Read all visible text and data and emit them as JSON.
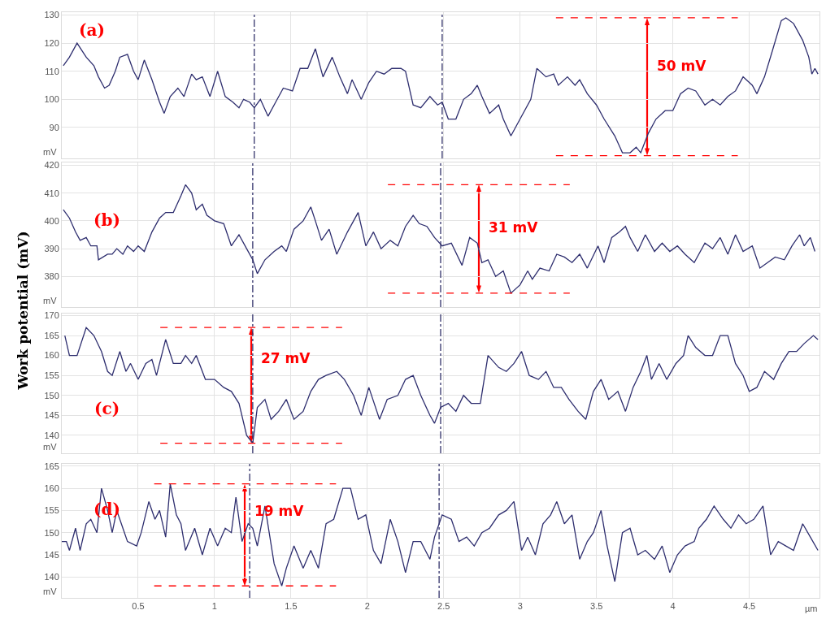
{
  "chart_data": [
    {
      "type": "line",
      "ylabel": "mV",
      "annotations": [
        "(a)",
        {
          "text": "50 mV",
          "x": 3.83,
          "y": 129
        }
      ],
      "xlim": [
        0,
        4.96
      ],
      "xticks": [
        0.5,
        1,
        1.5,
        2,
        2.5,
        3,
        3.5,
        4,
        4.5
      ],
      "ylim": [
        79,
        131
      ],
      "yticks": [
        90,
        100,
        110,
        120,
        130
      ],
      "grid": true,
      "tick_labels": "y",
      "ref_lines": [
        {
          "axis": "x",
          "value": 1.26,
          "color": "#33336b",
          "line_style": "dashdot"
        },
        {
          "axis": "x",
          "value": 2.49,
          "color": "#33336b",
          "line_style": "dashdot"
        },
        {
          "axis": "y",
          "value": 129,
          "color": "#ff0000",
          "line_style": "dashed"
        },
        {
          "axis": "y",
          "value": 80,
          "color": "#ff0000",
          "line_style": "dashed"
        }
      ],
      "x": [
        0.01,
        0.05,
        0.1,
        0.16,
        0.21,
        0.24,
        0.28,
        0.31,
        0.35,
        0.38,
        0.43,
        0.47,
        0.5,
        0.54,
        0.59,
        0.64,
        0.67,
        0.71,
        0.76,
        0.8,
        0.85,
        0.88,
        0.92,
        0.97,
        1.02,
        1.07,
        1.12,
        1.16,
        1.19,
        1.23,
        1.26,
        1.3,
        1.35,
        1.4,
        1.45,
        1.51,
        1.56,
        1.61,
        1.66,
        1.71,
        1.77,
        1.82,
        1.87,
        1.9,
        1.96,
        2.01,
        2.06,
        2.11,
        2.16,
        2.22,
        2.25,
        2.3,
        2.35,
        2.41,
        2.46,
        2.49,
        2.53,
        2.58,
        2.63,
        2.68,
        2.72,
        2.75,
        2.8,
        2.86,
        2.89,
        2.94,
        3.0,
        3.07,
        3.11,
        3.17,
        3.22,
        3.25,
        3.31,
        3.36,
        3.39,
        3.44,
        3.5,
        3.55,
        3.62,
        3.67,
        3.72,
        3.76,
        3.79,
        3.84,
        3.89,
        3.95,
        4.0,
        4.05,
        4.1,
        4.15,
        4.21,
        4.26,
        4.31,
        4.36,
        4.41,
        4.46,
        4.52,
        4.55,
        4.6,
        4.65,
        4.71,
        4.74,
        4.79,
        4.85,
        4.89,
        4.91,
        4.93,
        4.95
      ],
      "series": [
        {
          "color": "#2d2d6e",
          "values": [
            112,
            115,
            120,
            115,
            112,
            108,
            104,
            105,
            110,
            115,
            116,
            110,
            107,
            114,
            107,
            99,
            95,
            101,
            104,
            101,
            109,
            107,
            108,
            101,
            110,
            101,
            99,
            97,
            100,
            99,
            97,
            100,
            94,
            99,
            104,
            103,
            111,
            111,
            118,
            108,
            115,
            108,
            102,
            107,
            100,
            106,
            110,
            109,
            111,
            111,
            110,
            98,
            97,
            101,
            98,
            99,
            93,
            93,
            100,
            102,
            105,
            101,
            95,
            98,
            93,
            87,
            93,
            100,
            111,
            108,
            109,
            105,
            108,
            105,
            107,
            102,
            98,
            93,
            87,
            81,
            81,
            83,
            81,
            88,
            93,
            96,
            96,
            102,
            104,
            103,
            98,
            100,
            98,
            101,
            103,
            108,
            105,
            102,
            108,
            117,
            128,
            129,
            127,
            121,
            115,
            109,
            111,
            109
          ]
        }
      ]
    },
    {
      "type": "line",
      "ylabel": "mV",
      "annotations": [
        "(b)",
        {
          "text": "31 mV",
          "x": 2.73,
          "y": 413
        },
        "Work potential (mV)"
      ],
      "xlim": [
        0,
        4.96
      ],
      "xticks": [
        0.5,
        1,
        1.5,
        2,
        2.5,
        3,
        3.5,
        4,
        4.5
      ],
      "ylim": [
        369,
        421
      ],
      "yticks": [
        380,
        390,
        400,
        410,
        420
      ],
      "grid": true,
      "tick_labels": "y",
      "ref_lines": [
        {
          "axis": "x",
          "value": 1.25,
          "color": "#33336b",
          "line_style": "dashdot"
        },
        {
          "axis": "x",
          "value": 2.48,
          "color": "#33336b",
          "line_style": "dashdot"
        },
        {
          "axis": "y",
          "value": 413,
          "color": "#ff0000",
          "line_style": "dashed"
        },
        {
          "axis": "y",
          "value": 374,
          "color": "#ff0000",
          "line_style": "dashed"
        }
      ],
      "x": [
        0.01,
        0.05,
        0.09,
        0.12,
        0.16,
        0.19,
        0.23,
        0.24,
        0.3,
        0.33,
        0.36,
        0.4,
        0.43,
        0.47,
        0.5,
        0.54,
        0.59,
        0.64,
        0.68,
        0.73,
        0.78,
        0.81,
        0.85,
        0.88,
        0.92,
        0.95,
        1.0,
        1.06,
        1.11,
        1.16,
        1.21,
        1.25,
        1.28,
        1.33,
        1.39,
        1.44,
        1.47,
        1.52,
        1.58,
        1.63,
        1.66,
        1.7,
        1.75,
        1.8,
        1.87,
        1.94,
        1.99,
        2.04,
        2.09,
        2.15,
        2.2,
        2.25,
        2.3,
        2.34,
        2.39,
        2.44,
        2.49,
        2.55,
        2.62,
        2.67,
        2.72,
        2.75,
        2.79,
        2.84,
        2.89,
        2.94,
        3.0,
        3.05,
        3.08,
        3.13,
        3.19,
        3.24,
        3.29,
        3.34,
        3.39,
        3.44,
        3.51,
        3.55,
        3.6,
        3.65,
        3.69,
        3.72,
        3.77,
        3.82,
        3.88,
        3.93,
        3.98,
        4.03,
        4.08,
        4.14,
        4.21,
        4.26,
        4.31,
        4.36,
        4.41,
        4.46,
        4.52,
        4.57,
        4.62,
        4.67,
        4.73,
        4.78,
        4.83,
        4.86,
        4.9,
        4.93
      ],
      "series": [
        {
          "color": "#2d2d6e",
          "values": [
            404,
            401,
            396,
            393,
            394,
            391,
            391,
            386,
            388,
            388,
            390,
            388,
            391,
            389,
            391,
            389,
            396,
            401,
            403,
            403,
            409,
            413,
            410,
            404,
            406,
            402,
            400,
            399,
            391,
            395,
            390,
            386,
            381,
            386,
            389,
            391,
            389,
            397,
            400,
            405,
            400,
            393,
            397,
            388,
            396,
            403,
            391,
            396,
            390,
            393,
            391,
            398,
            402,
            399,
            398,
            394,
            391,
            392,
            384,
            394,
            392,
            385,
            386,
            380,
            382,
            374,
            377,
            382,
            379,
            383,
            382,
            388,
            387,
            385,
            388,
            383,
            391,
            385,
            394,
            396,
            398,
            394,
            389,
            395,
            389,
            392,
            389,
            391,
            388,
            385,
            392,
            390,
            394,
            388,
            395,
            389,
            391,
            383,
            385,
            387,
            386,
            391,
            395,
            391,
            394,
            389
          ]
        }
      ]
    },
    {
      "type": "line",
      "ylabel": "mV",
      "annotations": [
        "(c)",
        {
          "text": "27 mV",
          "x": 1.24,
          "y": 167
        }
      ],
      "xlim": [
        0,
        4.96
      ],
      "xticks": [
        0.5,
        1,
        1.5,
        2,
        2.5,
        3,
        3.5,
        4,
        4.5
      ],
      "ylim": [
        135.5,
        170.5
      ],
      "yticks": [
        140,
        145,
        150,
        155,
        160,
        165,
        170
      ],
      "grid": true,
      "tick_labels": "y",
      "ref_lines": [
        {
          "axis": "x",
          "value": 1.25,
          "color": "#33336b",
          "line_style": "dashdot"
        },
        {
          "axis": "x",
          "value": 2.48,
          "color": "#33336b",
          "line_style": "dashdot"
        },
        {
          "axis": "y",
          "value": 167,
          "color": "#ff0000",
          "line_style": "dashed"
        },
        {
          "axis": "y",
          "value": 138,
          "color": "#ff0000",
          "line_style": "dashed"
        }
      ],
      "x": [
        0.02,
        0.05,
        0.1,
        0.16,
        0.21,
        0.26,
        0.3,
        0.33,
        0.38,
        0.42,
        0.45,
        0.5,
        0.55,
        0.59,
        0.62,
        0.68,
        0.73,
        0.78,
        0.81,
        0.85,
        0.88,
        0.94,
        1.0,
        1.06,
        1.11,
        1.16,
        1.21,
        1.25,
        1.28,
        1.33,
        1.37,
        1.42,
        1.47,
        1.52,
        1.58,
        1.63,
        1.68,
        1.73,
        1.8,
        1.85,
        1.91,
        1.96,
        2.01,
        2.08,
        2.13,
        2.2,
        2.25,
        2.3,
        2.35,
        2.41,
        2.44,
        2.48,
        2.53,
        2.58,
        2.63,
        2.68,
        2.74,
        2.79,
        2.86,
        2.91,
        2.96,
        3.01,
        3.06,
        3.12,
        3.17,
        3.22,
        3.27,
        3.32,
        3.38,
        3.43,
        3.48,
        3.53,
        3.58,
        3.64,
        3.69,
        3.74,
        3.79,
        3.83,
        3.86,
        3.91,
        3.96,
        4.02,
        4.07,
        4.1,
        4.15,
        4.21,
        4.26,
        4.31,
        4.36,
        4.41,
        4.46,
        4.5,
        4.55,
        4.6,
        4.66,
        4.71,
        4.76,
        4.81,
        4.86,
        4.92,
        4.95
      ],
      "series": [
        {
          "color": "#2d2d6e",
          "values": [
            165,
            160,
            160,
            167,
            165,
            161,
            156,
            155,
            161,
            156,
            158,
            154,
            158,
            159,
            155,
            164,
            158,
            158,
            160,
            158,
            160,
            154,
            154,
            152,
            151,
            148,
            140,
            138,
            147,
            149,
            144,
            146,
            149,
            144,
            146,
            151,
            154,
            155,
            156,
            154,
            150,
            145,
            152,
            144,
            149,
            150,
            154,
            155,
            150,
            145,
            143,
            147,
            148,
            146,
            150,
            148,
            148,
            160,
            157,
            156,
            158,
            161,
            155,
            154,
            156,
            152,
            152,
            149,
            146,
            144,
            151,
            154,
            149,
            151,
            146,
            152,
            156,
            160,
            154,
            158,
            154,
            158,
            160,
            165,
            162,
            160,
            160,
            165,
            165,
            158,
            155,
            151,
            152,
            156,
            154,
            158,
            161,
            161,
            163,
            165,
            164
          ]
        }
      ]
    },
    {
      "type": "line",
      "ylabel": "mV",
      "xlabel": "µm",
      "annotations": [
        "(d)",
        {
          "text": "19 mV",
          "x": 1.2,
          "y": 161
        }
      ],
      "xlim": [
        0,
        4.96
      ],
      "xticks": [
        0.5,
        1,
        1.5,
        2,
        2.5,
        3,
        3.5,
        4,
        4.5
      ],
      "ylim": [
        135.3,
        165.5
      ],
      "yticks": [
        140,
        145,
        150,
        155,
        160,
        165
      ],
      "grid": true,
      "ref_lines": [
        {
          "axis": "x",
          "value": 1.23,
          "color": "#33336b",
          "line_style": "dashdot"
        },
        {
          "axis": "x",
          "value": 2.47,
          "color": "#33336b",
          "line_style": "dashdot"
        },
        {
          "axis": "y",
          "value": 161,
          "color": "#ff0000",
          "line_style": "dashed"
        },
        {
          "axis": "y",
          "value": 138,
          "color": "#ff0000",
          "line_style": "dashed"
        }
      ],
      "x": [
        0.0,
        0.03,
        0.05,
        0.09,
        0.12,
        0.16,
        0.19,
        0.23,
        0.26,
        0.3,
        0.33,
        0.36,
        0.4,
        0.43,
        0.49,
        0.52,
        0.57,
        0.61,
        0.64,
        0.68,
        0.71,
        0.75,
        0.78,
        0.81,
        0.87,
        0.92,
        0.97,
        1.02,
        1.07,
        1.11,
        1.14,
        1.18,
        1.22,
        1.25,
        1.28,
        1.33,
        1.39,
        1.44,
        1.47,
        1.52,
        1.58,
        1.63,
        1.68,
        1.73,
        1.78,
        1.84,
        1.89,
        1.94,
        1.99,
        2.04,
        2.09,
        2.15,
        2.2,
        2.25,
        2.3,
        2.35,
        2.41,
        2.44,
        2.49,
        2.55,
        2.6,
        2.65,
        2.7,
        2.75,
        2.8,
        2.86,
        2.91,
        2.96,
        3.01,
        3.05,
        3.1,
        3.15,
        3.2,
        3.24,
        3.29,
        3.34,
        3.39,
        3.44,
        3.48,
        3.53,
        3.57,
        3.62,
        3.67,
        3.72,
        3.77,
        3.82,
        3.88,
        3.93,
        3.98,
        4.03,
        4.08,
        4.14,
        4.17,
        4.22,
        4.27,
        4.33,
        4.38,
        4.43,
        4.48,
        4.53,
        4.59,
        4.64,
        4.69,
        4.74,
        4.79,
        4.85,
        4.9,
        4.95
      ],
      "series": [
        {
          "color": "#2d2d6e",
          "values": [
            148,
            148,
            146,
            151,
            146,
            152,
            153,
            150,
            160,
            155,
            150,
            155,
            151,
            148,
            147,
            150,
            157,
            153,
            155,
            149,
            161,
            154,
            152,
            146,
            151,
            145,
            151,
            147,
            151,
            150,
            158,
            148,
            152,
            151,
            147,
            156,
            143,
            138,
            142,
            147,
            142,
            146,
            142,
            152,
            153,
            160,
            160,
            153,
            154,
            146,
            143,
            153,
            148,
            141,
            148,
            148,
            144,
            149,
            154,
            153,
            148,
            149,
            147,
            150,
            151,
            154,
            155,
            157,
            146,
            149,
            145,
            152,
            154,
            157,
            152,
            154,
            144,
            148,
            150,
            155,
            147,
            139,
            150,
            151,
            145,
            146,
            144,
            147,
            141,
            145,
            147,
            148,
            151,
            153,
            156,
            153,
            151,
            154,
            152,
            153,
            156,
            145,
            148,
            147,
            146,
            152,
            149,
            146
          ]
        }
      ]
    }
  ]
}
